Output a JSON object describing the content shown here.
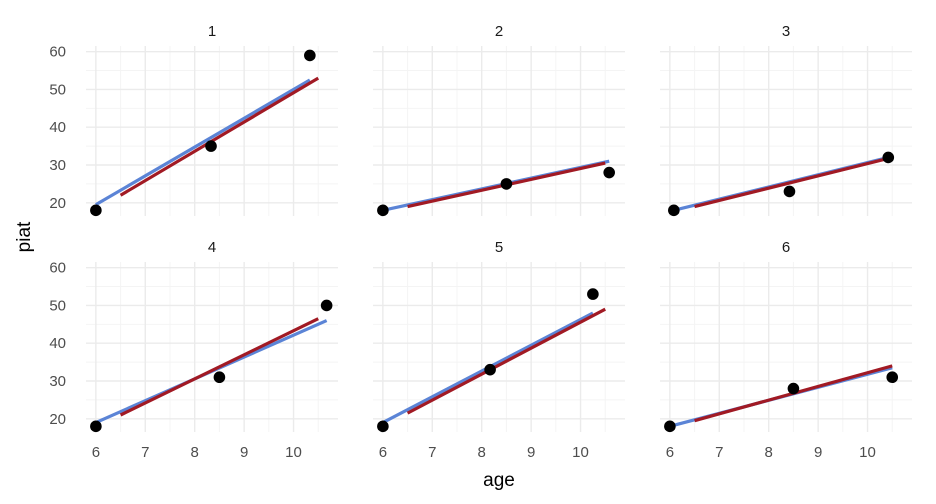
{
  "chart_data": {
    "type": "scatter",
    "xlabel": "age",
    "ylabel": "piat",
    "xlim": [
      5.8,
      10.9
    ],
    "ylim": [
      16.5,
      61.5
    ],
    "x_ticks": [
      6,
      7,
      8,
      9,
      10
    ],
    "y_ticks": [
      20,
      30,
      40,
      50,
      60
    ],
    "grid": true,
    "colors": {
      "points": "#000000",
      "line_individual": "#5b84d6",
      "line_model": "#a11a24",
      "grid_major": "#ebebeb",
      "grid_minor": "#f4f4f4"
    },
    "panels": [
      {
        "label": "1",
        "points": [
          {
            "x": 6.0,
            "y": 18
          },
          {
            "x": 8.33,
            "y": 35
          },
          {
            "x": 10.33,
            "y": 59
          }
        ],
        "line_individual": {
          "x": [
            6.0,
            10.33
          ],
          "y": [
            19.5,
            52.5
          ]
        },
        "line_model": {
          "x": [
            6.5,
            10.5
          ],
          "y": [
            22,
            53
          ]
        }
      },
      {
        "label": "2",
        "points": [
          {
            "x": 6.0,
            "y": 18
          },
          {
            "x": 8.5,
            "y": 25
          },
          {
            "x": 10.58,
            "y": 28
          }
        ],
        "line_individual": {
          "x": [
            6.0,
            10.58
          ],
          "y": [
            18,
            31
          ]
        },
        "line_model": {
          "x": [
            6.5,
            10.5
          ],
          "y": [
            19,
            30.5
          ]
        }
      },
      {
        "label": "3",
        "points": [
          {
            "x": 6.08,
            "y": 18
          },
          {
            "x": 8.42,
            "y": 23
          },
          {
            "x": 10.42,
            "y": 32
          }
        ],
        "line_individual": {
          "x": [
            6.08,
            10.42
          ],
          "y": [
            18,
            32
          ]
        },
        "line_model": {
          "x": [
            6.5,
            10.5
          ],
          "y": [
            19,
            32
          ]
        }
      },
      {
        "label": "4",
        "points": [
          {
            "x": 6.0,
            "y": 18
          },
          {
            "x": 8.5,
            "y": 31
          },
          {
            "x": 10.67,
            "y": 50
          }
        ],
        "line_individual": {
          "x": [
            6.0,
            10.67
          ],
          "y": [
            19,
            46
          ]
        },
        "line_model": {
          "x": [
            6.5,
            10.5
          ],
          "y": [
            21,
            46.5
          ]
        }
      },
      {
        "label": "5",
        "points": [
          {
            "x": 6.0,
            "y": 18
          },
          {
            "x": 8.17,
            "y": 33
          },
          {
            "x": 10.25,
            "y": 53
          }
        ],
        "line_individual": {
          "x": [
            6.0,
            10.25
          ],
          "y": [
            19,
            48
          ]
        },
        "line_model": {
          "x": [
            6.5,
            10.5
          ],
          "y": [
            21.5,
            49
          ]
        }
      },
      {
        "label": "6",
        "points": [
          {
            "x": 6.0,
            "y": 18
          },
          {
            "x": 8.5,
            "y": 28
          },
          {
            "x": 10.5,
            "y": 31
          }
        ],
        "line_individual": {
          "x": [
            6.0,
            10.5
          ],
          "y": [
            18,
            33.5
          ]
        },
        "line_model": {
          "x": [
            6.5,
            10.5
          ],
          "y": [
            19.5,
            34
          ]
        }
      }
    ]
  }
}
